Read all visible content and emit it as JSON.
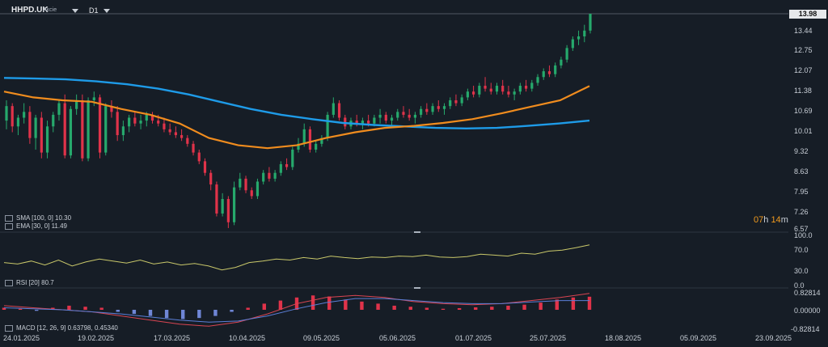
{
  "header": {
    "symbol": "HHPD.UK",
    "symbol_sub": "Akcie",
    "timeframe": "D1",
    "current_price": "13.98",
    "countdown_h": "07",
    "countdown_h_unit": "h",
    "countdown_m": "14",
    "countdown_m_unit": "m"
  },
  "price_axis": [
    "13.98",
    "13.44",
    "12.75",
    "12.07",
    "11.38",
    "10.69",
    "10.01",
    "9.32",
    "8.63",
    "7.95",
    "7.26",
    "6.57"
  ],
  "rsi_axis": [
    "100.0",
    "70.0",
    "30.0",
    "0.0"
  ],
  "macd_axis": [
    "0.82814",
    "0.00000",
    "-0.82814"
  ],
  "x_axis": [
    "24.01.2025",
    "19.02.2025",
    "17.03.2025",
    "10.04.2025",
    "09.05.2025",
    "05.06.2025",
    "01.07.2025",
    "25.07.2025",
    "18.08.2025",
    "05.09.2025",
    "23.09.2025"
  ],
  "legends": {
    "sma": "SMA [100, 0] 10.30",
    "ema": "EMA [30, 0] 11.49",
    "rsi": "RSI [20] 80.7",
    "macd": "MACD [12, 26, 9] 0.63798, 0.45340"
  },
  "colors": {
    "background": "#161d26",
    "up": "#26a96c",
    "down": "#e0334a",
    "sma": "#1e9be8",
    "ema": "#f08c1e",
    "rsi": "#c9c86a"
  },
  "chart_data": {
    "type": "candlestick",
    "y_range": [
      6.57,
      13.98
    ],
    "ohlc": [
      [
        10.3,
        11.0,
        10.0,
        10.8
      ],
      [
        10.8,
        10.9,
        9.9,
        10.1
      ],
      [
        10.1,
        10.5,
        9.8,
        10.4
      ],
      [
        10.4,
        10.9,
        10.2,
        10.6
      ],
      [
        10.6,
        10.8,
        9.5,
        9.7
      ],
      [
        9.7,
        10.5,
        9.3,
        10.4
      ],
      [
        10.4,
        10.6,
        9.0,
        9.2
      ],
      [
        9.2,
        10.3,
        9.0,
        10.1
      ],
      [
        10.1,
        10.6,
        9.9,
        10.5
      ],
      [
        10.5,
        11.0,
        10.3,
        10.9
      ],
      [
        10.9,
        11.2,
        9.0,
        9.1
      ],
      [
        9.1,
        10.8,
        9.0,
        10.7
      ],
      [
        10.7,
        11.2,
        10.5,
        11.0
      ],
      [
        11.0,
        11.2,
        8.9,
        9.0
      ],
      [
        9.0,
        11.1,
        8.9,
        11.0
      ],
      [
        11.0,
        11.3,
        10.8,
        11.1
      ],
      [
        11.1,
        11.2,
        9.0,
        9.2
      ],
      [
        9.2,
        10.9,
        9.1,
        10.8
      ],
      [
        10.8,
        11.0,
        10.4,
        10.6
      ],
      [
        10.6,
        10.8,
        9.6,
        9.8
      ],
      [
        9.8,
        10.3,
        9.6,
        10.1
      ],
      [
        10.1,
        10.5,
        9.9,
        10.4
      ],
      [
        10.4,
        10.6,
        10.1,
        10.2
      ],
      [
        10.2,
        10.5,
        10.0,
        10.3
      ],
      [
        10.3,
        10.6,
        10.1,
        10.5
      ],
      [
        10.5,
        10.6,
        10.2,
        10.3
      ],
      [
        10.3,
        10.5,
        10.1,
        10.2
      ],
      [
        10.2,
        10.4,
        9.9,
        10.0
      ],
      [
        10.0,
        10.2,
        9.8,
        9.9
      ],
      [
        9.9,
        10.1,
        9.7,
        9.8
      ],
      [
        9.8,
        10.0,
        9.6,
        9.7
      ],
      [
        9.7,
        9.8,
        9.4,
        9.5
      ],
      [
        9.5,
        9.6,
        9.1,
        9.2
      ],
      [
        9.2,
        9.3,
        8.8,
        8.9
      ],
      [
        8.9,
        9.0,
        8.4,
        8.5
      ],
      [
        8.5,
        8.6,
        7.9,
        8.1
      ],
      [
        8.1,
        8.2,
        7.0,
        7.1
      ],
      [
        7.1,
        7.8,
        7.0,
        7.6
      ],
      [
        7.6,
        7.7,
        6.6,
        6.8
      ],
      [
        6.8,
        8.2,
        6.7,
        8.0
      ],
      [
        8.0,
        8.5,
        7.9,
        8.3
      ],
      [
        8.3,
        8.4,
        7.8,
        7.9
      ],
      [
        7.9,
        8.0,
        7.6,
        7.7
      ],
      [
        7.7,
        8.3,
        7.6,
        8.2
      ],
      [
        8.2,
        8.6,
        8.1,
        8.5
      ],
      [
        8.5,
        8.7,
        8.2,
        8.3
      ],
      [
        8.3,
        8.6,
        8.2,
        8.5
      ],
      [
        8.5,
        8.9,
        8.4,
        8.8
      ],
      [
        8.8,
        9.0,
        8.6,
        8.7
      ],
      [
        8.7,
        9.4,
        8.6,
        9.3
      ],
      [
        9.3,
        9.7,
        9.2,
        9.5
      ],
      [
        9.5,
        10.2,
        9.4,
        10.0
      ],
      [
        10.0,
        10.1,
        9.2,
        9.3
      ],
      [
        9.3,
        9.6,
        9.2,
        9.5
      ],
      [
        9.5,
        9.8,
        9.4,
        9.7
      ],
      [
        9.7,
        10.6,
        9.6,
        10.5
      ],
      [
        10.5,
        11.1,
        10.4,
        10.9
      ],
      [
        10.9,
        11.0,
        10.3,
        10.4
      ],
      [
        10.4,
        10.5,
        10.0,
        10.1
      ],
      [
        10.1,
        10.4,
        10.0,
        10.3
      ],
      [
        10.3,
        10.5,
        10.1,
        10.2
      ],
      [
        10.2,
        10.4,
        10.0,
        10.3
      ],
      [
        10.3,
        10.5,
        10.1,
        10.2
      ],
      [
        10.2,
        10.5,
        10.1,
        10.4
      ],
      [
        10.4,
        10.7,
        10.2,
        10.5
      ],
      [
        10.5,
        10.6,
        10.2,
        10.3
      ],
      [
        10.3,
        10.5,
        10.1,
        10.4
      ],
      [
        10.4,
        10.7,
        10.3,
        10.6
      ],
      [
        10.6,
        10.8,
        10.4,
        10.5
      ],
      [
        10.5,
        10.7,
        10.3,
        10.4
      ],
      [
        10.4,
        10.6,
        10.2,
        10.5
      ],
      [
        10.5,
        10.8,
        10.4,
        10.7
      ],
      [
        10.7,
        10.9,
        10.5,
        10.6
      ],
      [
        10.6,
        10.9,
        10.5,
        10.8
      ],
      [
        10.8,
        11.0,
        10.6,
        10.7
      ],
      [
        10.7,
        10.9,
        10.5,
        10.8
      ],
      [
        10.8,
        11.1,
        10.7,
        11.0
      ],
      [
        11.0,
        11.2,
        10.8,
        10.9
      ],
      [
        10.9,
        11.2,
        10.8,
        11.1
      ],
      [
        11.1,
        11.4,
        11.0,
        11.3
      ],
      [
        11.3,
        11.5,
        11.1,
        11.2
      ],
      [
        11.2,
        11.6,
        11.1,
        11.5
      ],
      [
        11.5,
        11.8,
        11.3,
        11.4
      ],
      [
        11.4,
        11.6,
        11.2,
        11.3
      ],
      [
        11.3,
        11.6,
        11.2,
        11.5
      ],
      [
        11.5,
        11.7,
        11.2,
        11.3
      ],
      [
        11.3,
        11.5,
        11.1,
        11.2
      ],
      [
        11.2,
        11.4,
        11.0,
        11.3
      ],
      [
        11.3,
        11.6,
        11.2,
        11.5
      ],
      [
        11.5,
        11.7,
        11.3,
        11.4
      ],
      [
        11.4,
        11.7,
        11.3,
        11.6
      ],
      [
        11.6,
        11.9,
        11.5,
        11.8
      ],
      [
        11.8,
        12.1,
        11.7,
        12.0
      ],
      [
        12.0,
        12.2,
        11.8,
        11.9
      ],
      [
        11.9,
        12.3,
        11.8,
        12.2
      ],
      [
        12.2,
        12.5,
        12.1,
        12.4
      ],
      [
        12.4,
        12.9,
        12.3,
        12.8
      ],
      [
        12.8,
        13.2,
        12.7,
        13.1
      ],
      [
        13.1,
        13.4,
        12.9,
        13.2
      ],
      [
        13.2,
        13.6,
        13.0,
        13.4
      ],
      [
        13.4,
        13.98,
        13.3,
        13.98
      ]
    ],
    "sma": [
      11.77,
      11.75,
      11.72,
      11.65,
      11.55,
      11.4,
      11.2,
      10.95,
      10.7,
      10.5,
      10.35,
      10.22,
      10.15,
      10.1,
      10.05,
      10.03,
      10.05,
      10.12,
      10.2,
      10.3
    ],
    "ema": [
      11.3,
      11.1,
      11.0,
      10.95,
      10.7,
      10.5,
      10.2,
      9.7,
      9.45,
      9.35,
      9.45,
      9.7,
      9.9,
      10.05,
      10.12,
      10.22,
      10.35,
      10.55,
      10.78,
      11.0,
      11.49
    ],
    "rsi": [
      45,
      42,
      48,
      40,
      50,
      38,
      46,
      52,
      48,
      44,
      50,
      42,
      46,
      40,
      43,
      38,
      30,
      35,
      45,
      48,
      52,
      50,
      55,
      52,
      58,
      55,
      53,
      56,
      55,
      58,
      57,
      60,
      56,
      55,
      57,
      62,
      60,
      58,
      64,
      62,
      68,
      70,
      75,
      80.7
    ],
    "macd_hist": [
      0.1,
      0.05,
      -0.05,
      0.1,
      0.2,
      0.15,
      0.1,
      -0.1,
      -0.2,
      -0.3,
      -0.4,
      -0.45,
      -0.4,
      -0.3,
      -0.1,
      0.1,
      0.3,
      0.45,
      0.6,
      0.7,
      0.65,
      0.5,
      0.4,
      0.3,
      0.2,
      0.15,
      0.1,
      0.05,
      0.08,
      0.12,
      0.15,
      0.2,
      0.25,
      0.35,
      0.5,
      0.6,
      0.63798
    ],
    "macd_line": [
      0.2,
      0.1,
      0.0,
      -0.1,
      -0.3,
      -0.5,
      -0.7,
      -0.8,
      -0.6,
      -0.2,
      0.3,
      0.6,
      0.7,
      0.6,
      0.4,
      0.3,
      0.25,
      0.3,
      0.45,
      0.6,
      0.8
    ],
    "signal_line": [
      0.1,
      0.05,
      0.0,
      -0.1,
      -0.2,
      -0.35,
      -0.5,
      -0.6,
      -0.55,
      -0.3,
      0.05,
      0.35,
      0.55,
      0.55,
      0.45,
      0.35,
      0.3,
      0.3,
      0.38,
      0.45,
      0.45
    ]
  }
}
